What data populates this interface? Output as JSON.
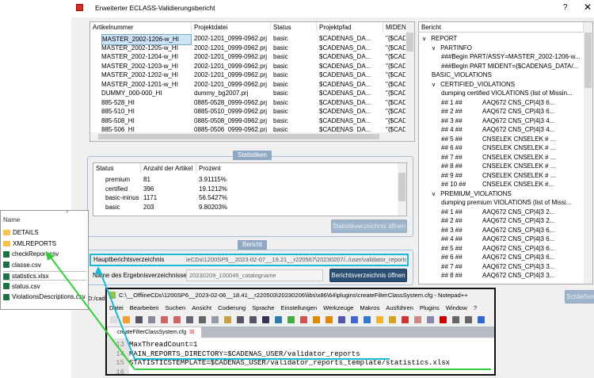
{
  "window": {
    "title": "Erweiterter ECLASS-Validierungsbericht",
    "help": "?",
    "close": "✕"
  },
  "articles": {
    "columns": [
      "Artikelnummer",
      "Projektdatei",
      "Status",
      "Projektpfad",
      "MIDENT"
    ],
    "rows": [
      [
        "MASTER_2002-1206-w_HI",
        "2002-1201_0999-0962.prj",
        "basic",
        "$CADENAS_DA...",
        "\"{$CADEN"
      ],
      [
        "MASTER_2002-1205-w_HI",
        "2002-1201_0999-0962.prj",
        "basic",
        "$CADENAS_DA...",
        "\"{$CADEN"
      ],
      [
        "MASTER_2002-1204-w_HI",
        "2002-1201_0999-0962.prj",
        "basic",
        "$CADENAS_DA...",
        "\"{$CADEN"
      ],
      [
        "MASTER_2002-1203-w_HI",
        "2002-1201_0999-0962.prj",
        "basic",
        "$CADENAS_DA...",
        "\"{$CADEN"
      ],
      [
        "MASTER_2002-1202-w_HI",
        "2002-1201_0999-0962.prj",
        "basic",
        "$CADENAS_DA...",
        "\"{$CADEN"
      ],
      [
        "MASTER_2002-1201-w_HI",
        "2002-1201_0999-0962.prj",
        "basic",
        "$CADENAS_DA...",
        "\"{$CADEN"
      ],
      [
        "DUMMY_000-000_HI",
        "dummy_bg2007.prj",
        "basic",
        "$CADENAS_DA...",
        "\"{$CADEN"
      ],
      [
        "885-528_HI",
        "0885-0528_0999-0962.prj",
        "basic",
        "$CADENAS_DA...",
        "\"{$CADEN"
      ],
      [
        "885-510_HI",
        "0885-0510_0999-0962.prj",
        "basic",
        "$CADENAS_DA...",
        "\"{$CADEN"
      ],
      [
        "885-508_HI",
        "0885-0508_0999-0962.prj",
        "basic",
        "$CADENAS_DA...",
        "\"{$CADEN"
      ],
      [
        "885-506_HI",
        "0885-0506_0999-0962.prj",
        "basic",
        "$CADENAS_DA...",
        "\"{$CADEN"
      ]
    ]
  },
  "statistics": {
    "legend": "Statistiken",
    "columns": [
      "Status",
      "Anzahl der Artikel",
      "Prozent"
    ],
    "rows": [
      [
        "premium",
        "81",
        "3.91115%"
      ],
      [
        "certified",
        "396",
        "19.1212%"
      ],
      [
        "basic-minus",
        "1171",
        "56.5427%"
      ],
      [
        "basic",
        "203",
        "9.80203%"
      ]
    ],
    "button": "Statistikverzeichnis öffnen"
  },
  "report": {
    "legend": "Bericht",
    "main_dir_label": "Hauptberichtsverzeichnis",
    "main_dir_value": "ieCDs\\1200SP5__2023-02-07__19.21__r220567\\20230207/../user/validator_reports",
    "result_dir_label": "Name des Ergebnisverzeichnisses",
    "result_dir_value": "20230209_100045_catalogname",
    "open_button": "Berichtsverzeichnis öffnen",
    "path_fragment": "D:/cade"
  },
  "tree": {
    "header": "Bericht",
    "items": [
      {
        "d": 0,
        "e": true,
        "t": "REPORT"
      },
      {
        "d": 1,
        "e": true,
        "t": "PARTINFO"
      },
      {
        "d": 2,
        "t": "###Begin PART/ASSY=MASTER_2002-1206-w..."
      },
      {
        "d": 2,
        "t": "###Begin PART MIDENT={$CADENAS_DATA/..."
      },
      {
        "d": 1,
        "t": "BASIC_VIOLATIONS"
      },
      {
        "d": 1,
        "e": true,
        "t": "CERTIFIED_VIOLATIONS"
      },
      {
        "d": 2,
        "t": "dumping certified VIOLATIONS (list of Missin..."
      },
      {
        "d": 2,
        "n": "## 1 ##",
        "t": "AAQ672 CNS_CP|4|3 6..."
      },
      {
        "d": 2,
        "n": "## 2 ##",
        "t": "AAQ672 CNS_CP|4|3 6..."
      },
      {
        "d": 2,
        "n": "## 3 ##",
        "t": "AAQ672 CNS_CP|4|3 4..."
      },
      {
        "d": 2,
        "n": "## 4 ##",
        "t": "AAQ672 CNS_CP|4|3 4..."
      },
      {
        "d": 2,
        "n": "## 5 ##",
        "t": "CNSELEK  CNSELEK # ..."
      },
      {
        "d": 2,
        "n": "## 6 ##",
        "t": "CNSELEK  CNSELEK # ..."
      },
      {
        "d": 2,
        "n": "## 7 ##",
        "t": "CNSELEK  CNSELEK # ..."
      },
      {
        "d": 2,
        "n": "## 8 ##",
        "t": "CNSELEK  CNSELEK # ..."
      },
      {
        "d": 2,
        "n": "## 9 ##",
        "t": "CNSELEK  CNSELEK # ..."
      },
      {
        "d": 2,
        "n": "## 10 ##",
        "t": "CNSELEK  CNSELEK #..."
      },
      {
        "d": 1,
        "e": true,
        "t": "PREMIUM_VIOLATIONS"
      },
      {
        "d": 2,
        "t": "dumping premium VIOLATIONS (list of Missi..."
      },
      {
        "d": 2,
        "n": "## 1 ##",
        "t": "AAQ672 CNS_CP|4|3 2..."
      },
      {
        "d": 2,
        "n": "## 2 ##",
        "t": "AAQ672 CNS_CP|4|3 2..."
      },
      {
        "d": 2,
        "n": "## 3 ##",
        "t": "AAQ672 CNS_CP|4|3 6..."
      },
      {
        "d": 2,
        "n": "## 4 ##",
        "t": "AAQ672 CNS_CP|4|3 6..."
      },
      {
        "d": 2,
        "n": "## 5 ##",
        "t": "AAQ672 CNS_CP|4|3 6..."
      },
      {
        "d": 2,
        "n": "## 6 ##",
        "t": "AAQ672 CNS_CP|4|3 6..."
      },
      {
        "d": 2,
        "n": "## 7 ##",
        "t": "AAQ672 CNS_CP|4|3 3..."
      },
      {
        "d": 2,
        "n": "## 8 ##",
        "t": "AAQ672 CNS_CP|4|3 3..."
      }
    ]
  },
  "close_button": "Schließen",
  "notepad": {
    "title": "C:\\__OfflineCDs\\1200SP6__2023-02-06__18.41__r220503\\20230206\\libs\\x86\\64\\plugins\\createFilterClassSystem.cfg - Notepad++",
    "menu": [
      "Datei",
      "Bearbeiten",
      "Suchen",
      "Ansicht",
      "Codierung",
      "Sprache",
      "Einstellungen",
      "Werkzeuge",
      "Makros",
      "Ausführen",
      "Plugins",
      "Window",
      "?"
    ],
    "tab": "createFilterClassSystem.cfg",
    "lines": [
      {
        "n": "13",
        "t": "MaxThreadCount=1"
      },
      {
        "n": "14",
        "t": "MAIN_REPORTS_DIRECTORY=$CADENAS_USER/validator_reports"
      },
      {
        "n": "15",
        "t": "STATISTICSTEMPLATE=$CADENAS_USER/validator_reports_template/statistics.xlsx"
      },
      {
        "n": "16",
        "t": ""
      }
    ]
  },
  "explorer": {
    "header": "Name",
    "items": [
      {
        "t": "DETAILS",
        "k": "folder"
      },
      {
        "t": "XMLREPORTS",
        "k": "folder"
      },
      {
        "t": "checkReport.csv",
        "k": "excel"
      },
      {
        "t": "classe.csv",
        "k": "excel"
      },
      {
        "t": "statistics.xlsx",
        "k": "excel"
      },
      {
        "t": "status.csv",
        "k": "excel"
      },
      {
        "t": "ViolationsDescriptions.csv",
        "k": "excel"
      }
    ]
  },
  "colors": {
    "highlight_cyan": "#19b9d6",
    "highlight_green": "#2fcf3a",
    "dark_button": "#2b4f73"
  }
}
